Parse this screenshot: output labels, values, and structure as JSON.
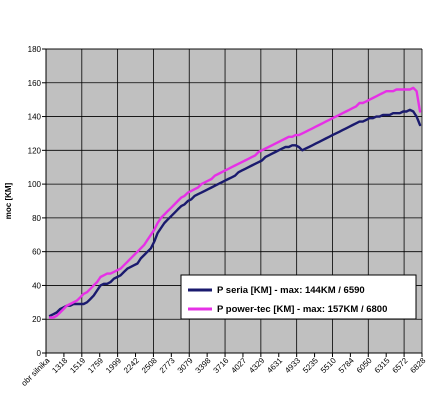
{
  "chart_data": {
    "type": "line",
    "ylabel": "moc [KM]",
    "xlabel": "",
    "ylim": [
      0,
      180
    ],
    "ytick_step": 20,
    "grid": true,
    "legend_position": "bottom-right",
    "plot_background": "#c0c0c0",
    "x_tick_labels": [
      "obr silnika",
      "1318",
      "1519",
      "1759",
      "1999",
      "2242",
      "2508",
      "2773",
      "3079",
      "3398",
      "3716",
      "4027",
      "4329",
      "4631",
      "4933",
      "5235",
      "5510",
      "5784",
      "6050",
      "6315",
      "6572",
      "6828"
    ],
    "series": [
      {
        "name": "P seria [KM] - max: 144KM / 6590",
        "color": "#1a1a6e",
        "values": [
          22,
          23,
          24,
          26,
          27,
          28,
          28,
          29,
          29,
          29,
          29,
          30,
          32,
          34,
          37,
          40,
          41,
          41,
          42,
          44,
          45,
          46,
          48,
          50,
          51,
          52,
          53,
          56,
          58,
          60,
          62,
          66,
          71,
          74,
          77,
          79,
          81,
          83,
          85,
          87,
          88,
          90,
          91,
          93,
          94,
          95,
          96,
          97,
          98,
          99,
          100,
          101,
          102,
          103,
          104,
          105,
          107,
          108,
          109,
          110,
          111,
          112,
          113,
          114,
          116,
          117,
          118,
          119,
          120,
          121,
          122,
          122,
          123,
          123,
          122,
          120,
          121,
          122,
          123,
          124,
          125,
          126,
          127,
          128,
          129,
          130,
          131,
          132,
          133,
          134,
          135,
          136,
          137,
          137,
          138,
          139,
          139,
          140,
          140,
          141,
          141,
          141,
          142,
          142,
          142,
          143,
          143,
          144,
          143,
          140,
          135
        ]
      },
      {
        "name": "P power-tec [KM] - max: 157KM / 6800",
        "color": "#e630e6",
        "values": [
          21,
          21,
          22,
          24,
          26,
          28,
          29,
          30,
          31,
          33,
          35,
          36,
          38,
          40,
          42,
          45,
          46,
          47,
          47,
          48,
          49,
          50,
          52,
          54,
          56,
          58,
          60,
          62,
          64,
          67,
          70,
          73,
          77,
          80,
          82,
          84,
          86,
          88,
          90,
          92,
          93,
          95,
          96,
          97,
          98,
          100,
          101,
          102,
          103,
          105,
          106,
          107,
          108,
          109,
          110,
          111,
          112,
          113,
          114,
          115,
          116,
          117,
          119,
          120,
          121,
          122,
          123,
          124,
          125,
          126,
          127,
          128,
          128,
          129,
          129,
          130,
          131,
          132,
          133,
          134,
          135,
          136,
          137,
          138,
          139,
          140,
          141,
          142,
          143,
          144,
          145,
          146,
          148,
          148,
          149,
          150,
          151,
          152,
          153,
          154,
          155,
          155,
          155,
          156,
          156,
          156,
          156,
          156,
          157,
          155,
          143
        ]
      }
    ]
  }
}
